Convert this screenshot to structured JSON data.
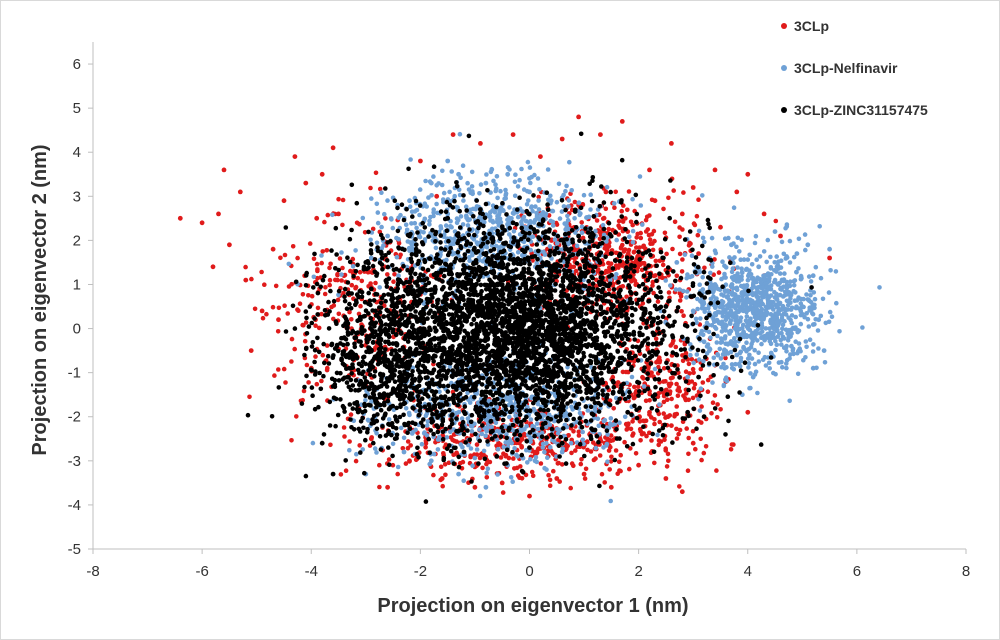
{
  "chart_data": {
    "type": "scatter",
    "xlabel": "Projection on eigenvector 1 (nm)",
    "ylabel": "Projection on eigenvector 2 (nm)",
    "xlim": [
      -8,
      8
    ],
    "ylim": [
      -5,
      6.5
    ],
    "xticks": [
      -8,
      -6,
      -4,
      -2,
      0,
      2,
      4,
      6,
      8
    ],
    "yticks": [
      -5,
      -4,
      -3,
      -2,
      -1,
      0,
      1,
      2,
      3,
      4,
      5,
      6
    ],
    "legend_position": "top-right",
    "grid": false,
    "series": [
      {
        "name": "3CLp",
        "color": "#e01b1b",
        "points": [
          [
            -6.4,
            2.5
          ],
          [
            -6.0,
            2.4
          ],
          [
            -5.7,
            2.6
          ],
          [
            -5.5,
            1.9
          ],
          [
            -5.8,
            1.4
          ],
          [
            -5.2,
            1.1
          ],
          [
            -4.9,
            0.4
          ],
          [
            -5.1,
            -0.5
          ],
          [
            -4.7,
            1.8
          ],
          [
            -4.5,
            2.9
          ],
          [
            -4.1,
            3.3
          ],
          [
            -3.8,
            3.5
          ],
          [
            -3.6,
            4.1
          ],
          [
            -4.3,
            3.9
          ],
          [
            -5.3,
            3.1
          ],
          [
            -5.6,
            3.6
          ],
          [
            -3.9,
            2.5
          ],
          [
            -3.4,
            1.2
          ],
          [
            -3.2,
            -0.2
          ],
          [
            -3.0,
            -1.3
          ],
          [
            -2.9,
            -2.5
          ],
          [
            -2.6,
            -3.6
          ],
          [
            -2.2,
            -3.0
          ],
          [
            -1.6,
            -3.4
          ],
          [
            -1.0,
            -3.6
          ],
          [
            -0.5,
            -3.5
          ],
          [
            0.0,
            -3.8
          ],
          [
            0.5,
            -3.4
          ],
          [
            1.0,
            -3.3
          ],
          [
            1.5,
            -3.6
          ],
          [
            2.0,
            -3.1
          ],
          [
            2.5,
            -3.4
          ],
          [
            2.8,
            -3.7
          ],
          [
            3.0,
            -2.6
          ],
          [
            2.6,
            -2.2
          ],
          [
            2.2,
            -1.9
          ],
          [
            -2.4,
            2.0
          ],
          [
            -2.0,
            3.8
          ],
          [
            -1.4,
            4.4
          ],
          [
            -0.9,
            4.2
          ],
          [
            -0.3,
            4.4
          ],
          [
            0.2,
            3.9
          ],
          [
            0.6,
            4.3
          ],
          [
            0.9,
            4.8
          ],
          [
            1.3,
            4.4
          ],
          [
            1.7,
            4.7
          ],
          [
            2.2,
            3.6
          ],
          [
            2.6,
            4.2
          ],
          [
            3.0,
            3.2
          ],
          [
            3.4,
            3.6
          ],
          [
            3.8,
            3.1
          ],
          [
            4.0,
            3.5
          ],
          [
            4.3,
            2.6
          ],
          [
            4.6,
            2.1
          ],
          [
            4.3,
            1.2
          ],
          [
            3.9,
            0.8
          ],
          [
            3.5,
            2.3
          ],
          [
            3.1,
            1.7
          ],
          [
            2.8,
            2.6
          ],
          [
            2.3,
            2.9
          ],
          [
            1.8,
            2.2
          ],
          [
            1.4,
            3.1
          ],
          [
            0.9,
            2.8
          ],
          [
            2.7,
            0.4
          ],
          [
            2.9,
            -0.7
          ],
          [
            2.5,
            -1.4
          ],
          [
            3.6,
            -1.2
          ],
          [
            4.0,
            -1.9
          ],
          [
            5.5,
            1.6
          ],
          [
            -1.7,
            3.0
          ],
          [
            -2.8,
            0.6
          ],
          [
            -2.6,
            -1.6
          ],
          [
            -3.5,
            2.6
          ],
          [
            -4.6,
            0.2
          ],
          [
            -4.0,
            -0.9
          ]
        ]
      },
      {
        "name": "3CLp-Nelfinavir",
        "color": "#6fa1d6",
        "points": [
          [
            -2.6,
            2.1
          ],
          [
            -2.2,
            2.9
          ],
          [
            -1.8,
            3.3
          ],
          [
            -1.3,
            3.5
          ],
          [
            -0.8,
            3.3
          ],
          [
            -0.4,
            3.5
          ],
          [
            0.0,
            3.1
          ],
          [
            0.4,
            2.9
          ],
          [
            -2.9,
            1.6
          ],
          [
            -2.4,
            1.2
          ],
          [
            -2.0,
            2.2
          ],
          [
            -1.5,
            2.6
          ],
          [
            -2.7,
            -2.2
          ],
          [
            -2.3,
            -2.8
          ],
          [
            -1.8,
            -3.0
          ],
          [
            -1.3,
            -3.3
          ],
          [
            -0.8,
            -3.6
          ],
          [
            -0.4,
            -3.1
          ],
          [
            0.1,
            -3.0
          ],
          [
            0.6,
            -2.8
          ],
          [
            3.0,
            0.4
          ],
          [
            3.2,
            -0.3
          ],
          [
            3.4,
            1.0
          ],
          [
            3.6,
            0.2
          ],
          [
            3.8,
            -0.6
          ],
          [
            4.0,
            0.6
          ],
          [
            4.2,
            1.4
          ],
          [
            4.4,
            0.0
          ],
          [
            4.6,
            0.9
          ],
          [
            4.8,
            -0.4
          ],
          [
            5.0,
            0.5
          ],
          [
            5.2,
            1.2
          ],
          [
            5.3,
            0.2
          ],
          [
            5.4,
            -0.5
          ],
          [
            5.5,
            1.8
          ],
          [
            3.3,
            1.6
          ],
          [
            3.7,
            1.9
          ],
          [
            4.1,
            -1.1
          ],
          [
            4.5,
            2.2
          ],
          [
            4.9,
            1.7
          ],
          [
            5.1,
            1.9
          ],
          [
            3.9,
            -1.5
          ],
          [
            2.7,
            1.5
          ],
          [
            2.9,
            -1.1
          ],
          [
            3.1,
            -1.6
          ],
          [
            5.2,
            -0.9
          ],
          [
            -3.0,
            -3.3
          ],
          [
            -1.5,
            3.8
          ]
        ]
      },
      {
        "name": "3CLp-ZINC31157475",
        "color": "#000000",
        "points": [
          [
            -3.8,
            -2.6
          ],
          [
            -3.6,
            -3.3
          ],
          [
            -3.4,
            -1.8
          ],
          [
            -3.3,
            -0.9
          ],
          [
            -3.1,
            0.2
          ],
          [
            -2.9,
            0.9
          ],
          [
            -2.7,
            1.6
          ],
          [
            -2.5,
            -1.4
          ],
          [
            -2.2,
            2.1
          ],
          [
            -2.0,
            1.1
          ],
          [
            -1.7,
            -2.2
          ],
          [
            -1.5,
            2.5
          ],
          [
            -1.2,
            -2.8
          ],
          [
            -0.9,
            2.7
          ],
          [
            -0.6,
            -2.9
          ],
          [
            -0.3,
            2.4
          ],
          [
            0.0,
            -2.7
          ],
          [
            0.3,
            2.2
          ],
          [
            0.6,
            -2.6
          ],
          [
            0.9,
            2.1
          ],
          [
            1.2,
            -2.3
          ],
          [
            1.5,
            1.7
          ],
          [
            1.8,
            -1.9
          ],
          [
            2.1,
            1.2
          ],
          [
            2.3,
            -1.5
          ],
          [
            2.5,
            0.5
          ],
          [
            2.7,
            -0.6
          ],
          [
            2.9,
            -1.9
          ],
          [
            3.1,
            -1.1
          ],
          [
            3.2,
            -2.0
          ],
          [
            -2.8,
            -2.1
          ],
          [
            -3.0,
            1.5
          ],
          [
            -1.9,
            -0.5
          ],
          [
            -1.0,
            0.5
          ],
          [
            0.5,
            -0.5
          ],
          [
            1.6,
            0.3
          ],
          [
            -0.5,
            1.0
          ],
          [
            0.8,
            0.9
          ],
          [
            -1.3,
            -1.0
          ],
          [
            0.2,
            -1.4
          ]
        ]
      }
    ],
    "core_clouds": [
      {
        "series": 1,
        "cx": -0.7,
        "cy": 2.2,
        "rx": 2.0,
        "ry": 1.2,
        "count": 700
      },
      {
        "series": 1,
        "cx": -0.5,
        "cy": -1.9,
        "rx": 2.1,
        "ry": 1.1,
        "count": 600
      },
      {
        "series": 1,
        "cx": 4.1,
        "cy": 0.4,
        "rx": 1.1,
        "ry": 1.2,
        "count": 900
      },
      {
        "series": 0,
        "cx": 1.6,
        "cy": 1.6,
        "rx": 1.4,
        "ry": 1.2,
        "count": 500
      },
      {
        "series": 0,
        "cx": -0.3,
        "cy": -2.6,
        "rx": 2.6,
        "ry": 0.7,
        "count": 450
      },
      {
        "series": 0,
        "cx": -3.2,
        "cy": 0.6,
        "rx": 1.5,
        "ry": 1.9,
        "count": 300
      },
      {
        "series": 0,
        "cx": 2.4,
        "cy": -1.3,
        "rx": 1.0,
        "ry": 1.2,
        "count": 250
      },
      {
        "series": 2,
        "cx": -0.3,
        "cy": 0.0,
        "rx": 2.6,
        "ry": 2.1,
        "count": 3800
      },
      {
        "series": 2,
        "cx": -2.6,
        "cy": -0.9,
        "rx": 1.2,
        "ry": 1.6,
        "count": 450
      }
    ]
  }
}
